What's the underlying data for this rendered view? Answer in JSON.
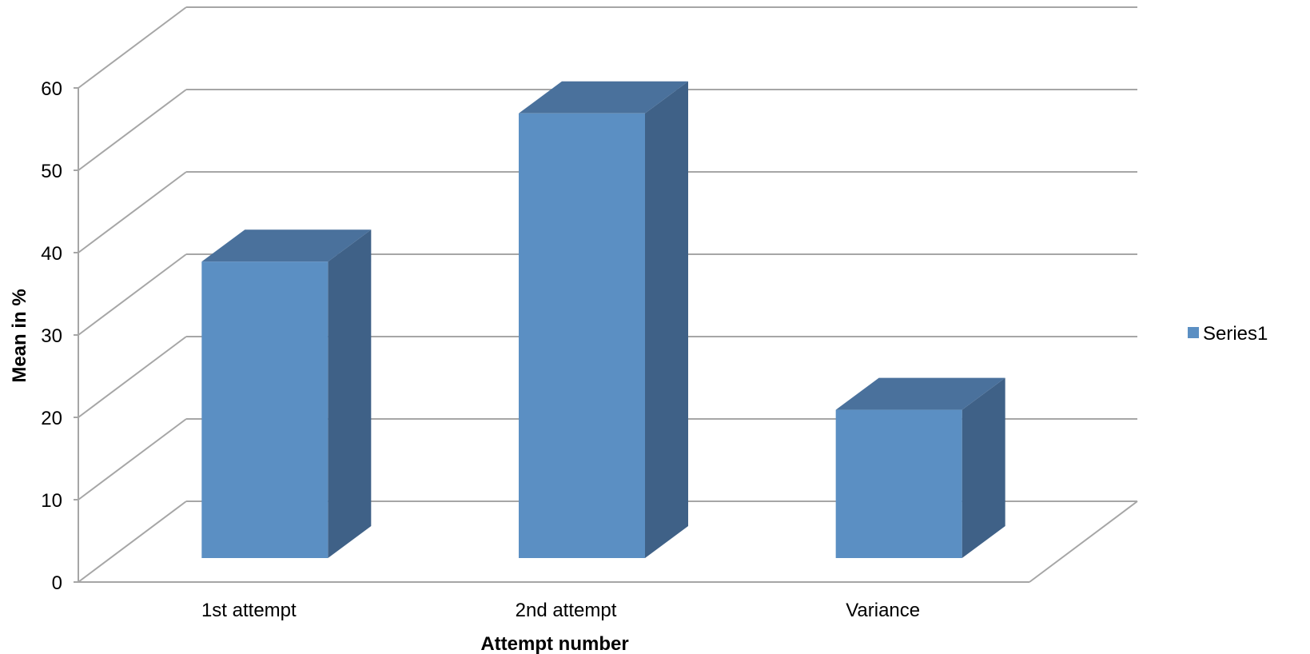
{
  "chart_data": {
    "type": "bar",
    "style": "3d-column",
    "title": "",
    "xlabel": "Attempt number",
    "ylabel": "Mean in %",
    "categories": [
      "1st attempt",
      "2nd attempt",
      "Variance"
    ],
    "series": [
      {
        "name": "Series1",
        "values": [
          36,
          54,
          18
        ],
        "color": "#5B8FC3"
      }
    ],
    "ylim": [
      0,
      60
    ],
    "yticks": [
      0,
      10,
      20,
      30,
      40,
      50,
      60
    ],
    "grid": true,
    "legend": "right",
    "colors": {
      "front": "#5B8FC3",
      "top": "#4A719C",
      "side": "#3F6187",
      "grid": "#A6A6A6"
    }
  }
}
